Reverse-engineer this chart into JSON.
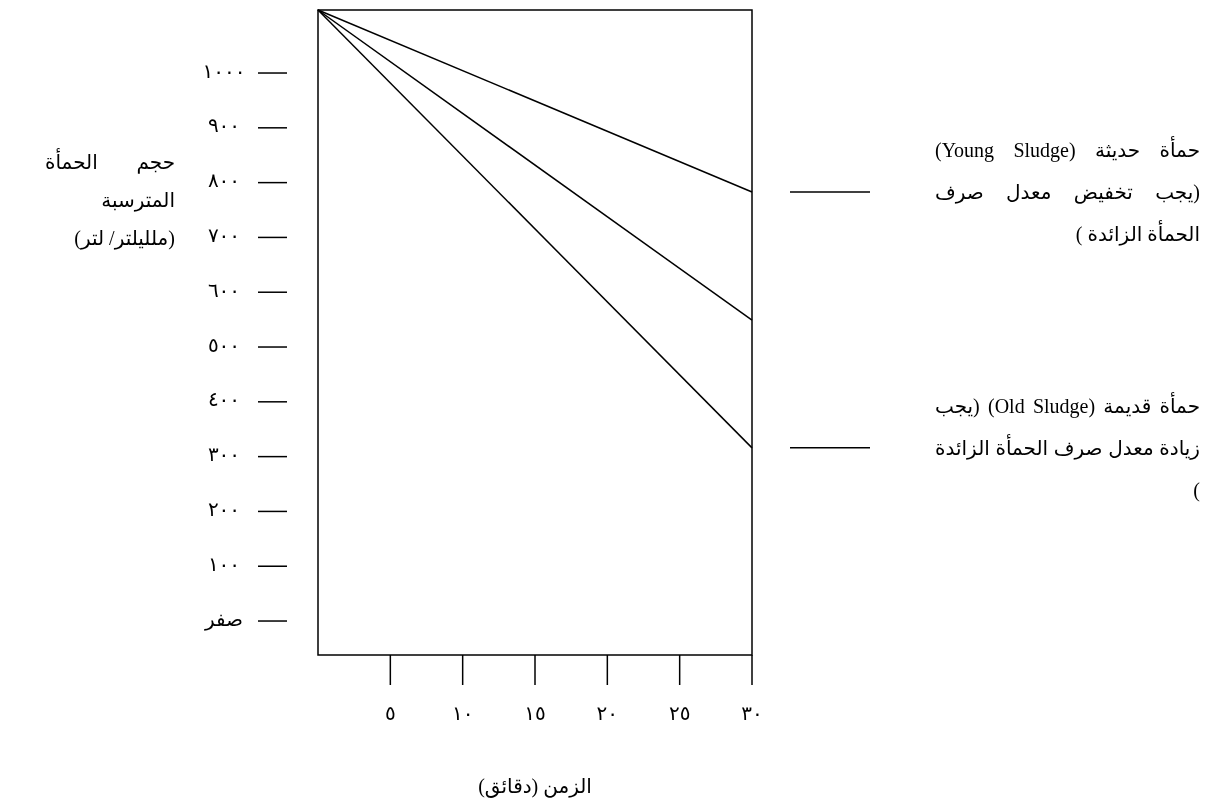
{
  "chart_data": {
    "type": "line",
    "xlabel": "الزمن (دقائق)",
    "ylabel": "حجم الحمأة المترسبة (ملليلتر/ لتر)",
    "xlim": [
      0,
      30
    ],
    "ylim": [
      -62,
      1115
    ],
    "x": [
      0,
      30
    ],
    "xticks": [
      {
        "value": 5,
        "label": "٥"
      },
      {
        "value": 10,
        "label": "١٠"
      },
      {
        "value": 15,
        "label": "١٥"
      },
      {
        "value": 20,
        "label": "٢٠"
      },
      {
        "value": 25,
        "label": "٢٥"
      },
      {
        "value": 30,
        "label": "٣٠"
      }
    ],
    "yticks": [
      {
        "value": 0,
        "label": "صفر"
      },
      {
        "value": 100,
        "label": "١٠٠"
      },
      {
        "value": 200,
        "label": "٢٠٠"
      },
      {
        "value": 300,
        "label": "٣٠٠"
      },
      {
        "value": 400,
        "label": "٤٠٠"
      },
      {
        "value": 500,
        "label": "٥٠٠"
      },
      {
        "value": 600,
        "label": "٦٠٠"
      },
      {
        "value": 700,
        "label": "٧٠٠"
      },
      {
        "value": 800,
        "label": "٨٠٠"
      },
      {
        "value": 900,
        "label": "٩٠٠"
      },
      {
        "value": 1000,
        "label": "١٠٠٠"
      }
    ],
    "series": [
      {
        "name": "حمأة حديثة (Young Sludge) (يجب تخفيض معدل صرف الحمأة الزائدة )",
        "color": "#000000",
        "values": [
          1115,
          783
        ]
      },
      {
        "color": "#000000",
        "values": [
          1115,
          549
        ]
      },
      {
        "name": "حمأة قديمة (Old Sludge) (يجب زيادة معدل صرف الحمأة الزائدة )",
        "color": "#000000",
        "values": [
          1115,
          316
        ]
      }
    ]
  }
}
